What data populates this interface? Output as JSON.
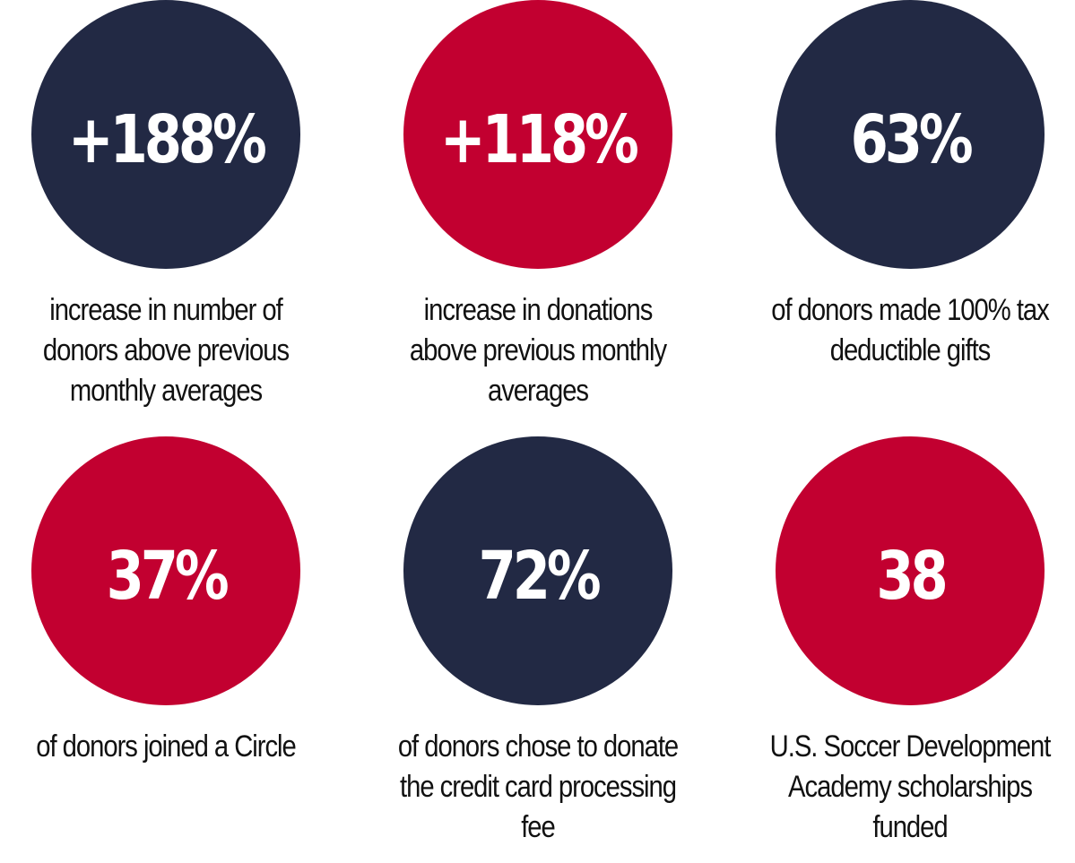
{
  "colors": {
    "navy": "#222944",
    "red": "#c20030",
    "text": "#111111",
    "background": "#ffffff"
  },
  "stats": [
    {
      "value": "+188%",
      "caption": "increase in number of donors above previous monthly averages",
      "color": "navy"
    },
    {
      "value": "+118%",
      "caption": "increase in donations above previous monthly averages",
      "color": "red"
    },
    {
      "value": "63%",
      "caption": "of donors made 100% tax deductible gifts",
      "color": "navy"
    },
    {
      "value": "37%",
      "caption": "of donors joined a Circle",
      "color": "red"
    },
    {
      "value": "72%",
      "caption": "of donors chose to donate the credit card processing fee",
      "color": "navy"
    },
    {
      "value": "38",
      "caption": "U.S. Soccer Development Academy scholarships funded",
      "color": "red"
    }
  ]
}
